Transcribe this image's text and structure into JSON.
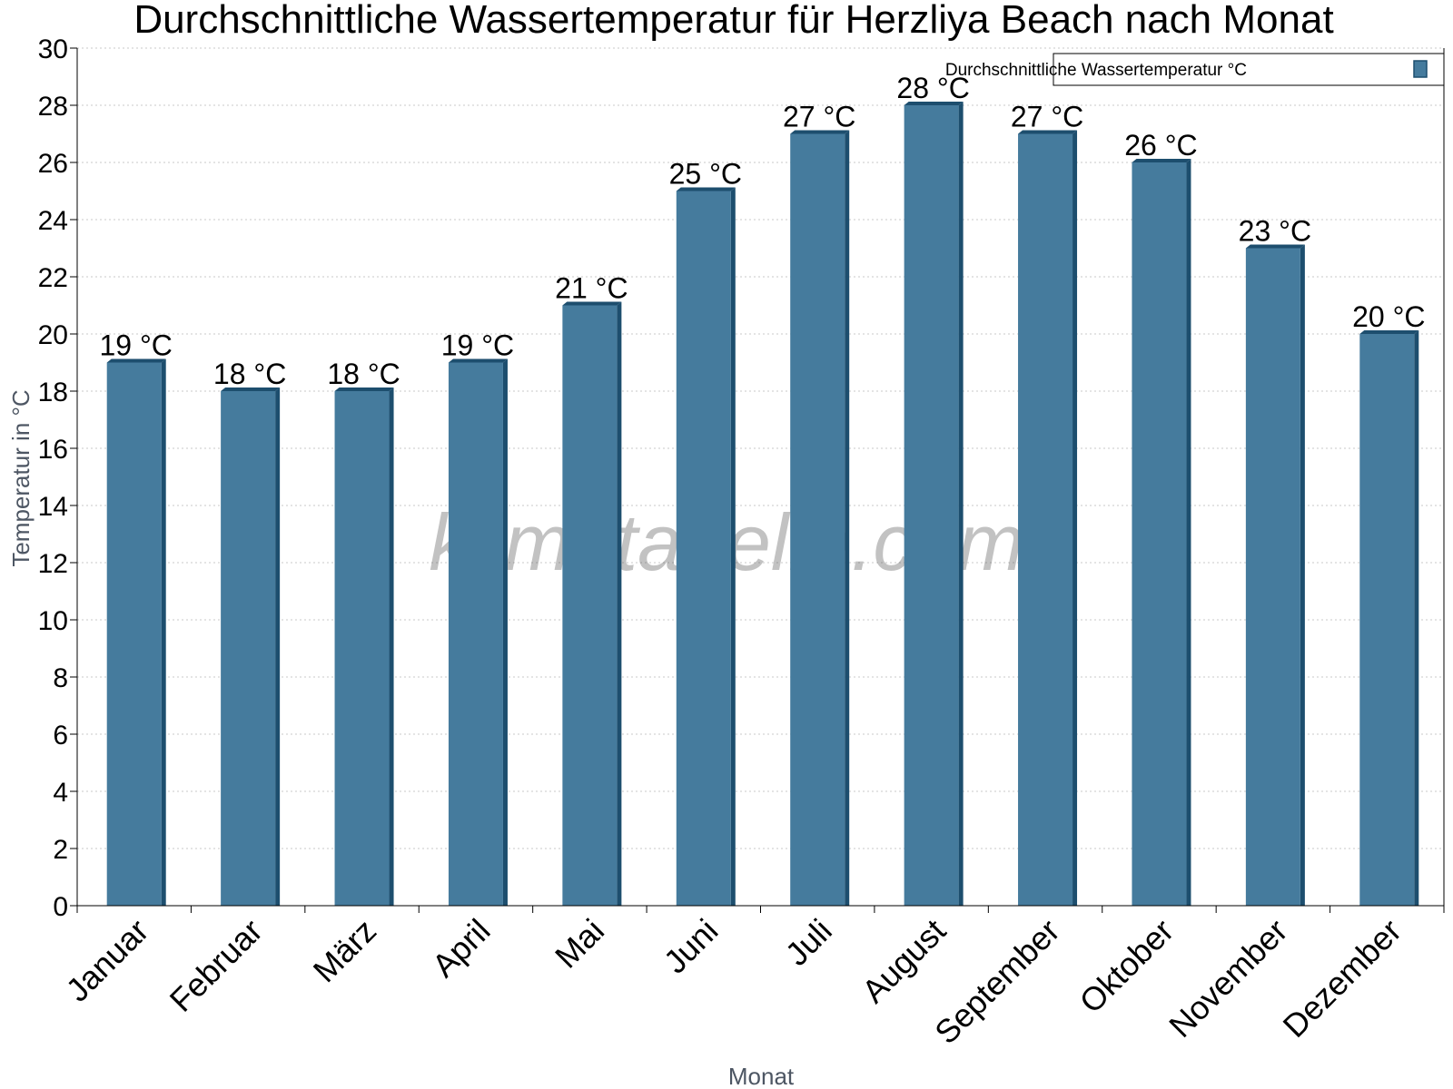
{
  "chart_data": {
    "type": "bar",
    "title": "Durchschnittliche Wassertemperatur für Herzliya Beach nach Monat",
    "xlabel": "Monat",
    "ylabel": "Temperatur in °C",
    "categories": [
      "Januar",
      "Februar",
      "März",
      "April",
      "Mai",
      "Juni",
      "Juli",
      "August",
      "September",
      "Oktober",
      "November",
      "Dezember"
    ],
    "series": [
      {
        "name": "Durchschnittliche Wassertemperatur °C",
        "values": [
          19,
          18,
          18,
          19,
          21,
          25,
          27,
          28,
          27,
          26,
          23,
          20
        ],
        "color": "#457b9d",
        "edge_color": "#1d4e6e"
      }
    ],
    "data_labels": [
      "19 °C",
      "18 °C",
      "18 °C",
      "19 °C",
      "21 °C",
      "25 °C",
      "27 °C",
      "28 °C",
      "27 °C",
      "26 °C",
      "23 °C",
      "20 °C"
    ],
    "ylim": [
      0,
      30
    ],
    "yticks": [
      0,
      2,
      4,
      6,
      8,
      10,
      12,
      14,
      16,
      18,
      20,
      22,
      24,
      26,
      28,
      30
    ],
    "grid": true,
    "legend_position": "top-right"
  },
  "watermark": "klimatabelle.com"
}
